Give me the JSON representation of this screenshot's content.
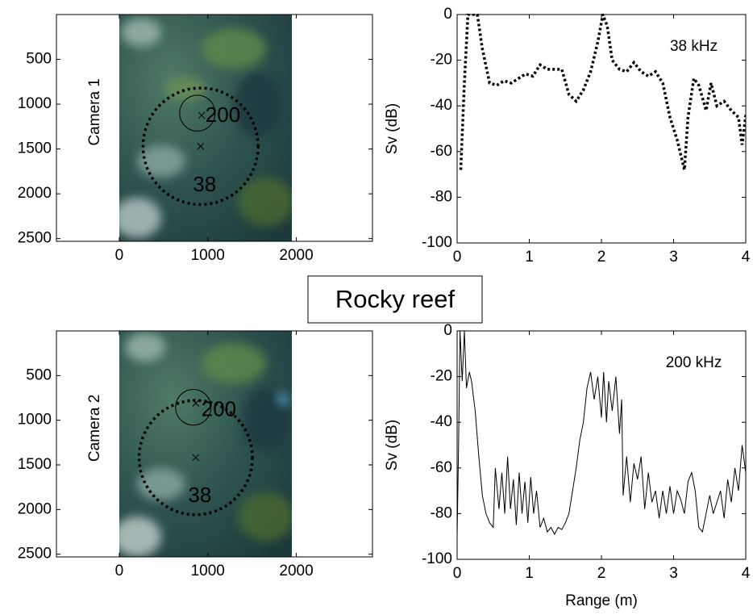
{
  "figure_label": "Rocky reef",
  "chart_data": [
    {
      "type": "image",
      "label": "Camera 1",
      "xlim": [
        -710,
        2860
      ],
      "ylim": [
        0,
        2530
      ],
      "y_inverted": true,
      "xticks": [
        0,
        1000,
        2000
      ],
      "yticks": [
        500,
        1000,
        1500,
        2000,
        2500
      ],
      "circles": [
        {
          "name": "200",
          "x": 882,
          "y": 1100,
          "r": 200,
          "cross_x": 930,
          "cross_y": 1125,
          "style": "solid"
        },
        {
          "name": "38",
          "x": 918,
          "y": 1470,
          "r": 650,
          "cross_x": 918,
          "cross_y": 1470,
          "style": "dotted"
        }
      ]
    },
    {
      "type": "line",
      "ylabel": "Sv (dB)",
      "annotation": "38 kHz",
      "xlim": [
        0,
        4
      ],
      "ylim": [
        -100,
        0
      ],
      "xticks": [
        0,
        1,
        2,
        3,
        4
      ],
      "yticks": [
        -100,
        -80,
        -60,
        -40,
        -20,
        0
      ],
      "color": "#000000",
      "line_style": "dotted",
      "x": [
        0.05,
        0.1,
        0.15,
        0.2,
        0.28,
        0.35,
        0.45,
        0.55,
        0.65,
        0.75,
        0.85,
        0.95,
        1.05,
        1.15,
        1.25,
        1.35,
        1.45,
        1.55,
        1.65,
        1.75,
        1.85,
        1.95,
        2.02,
        2.08,
        2.15,
        2.25,
        2.35,
        2.45,
        2.55,
        2.65,
        2.75,
        2.85,
        2.95,
        3.05,
        3.15,
        3.2,
        3.28,
        3.35,
        3.45,
        3.52,
        3.6,
        3.7,
        3.8,
        3.9,
        3.95,
        4.0
      ],
      "values": [
        -68,
        -30,
        0,
        0,
        0,
        -15,
        -30,
        -31,
        -29,
        -30,
        -28,
        -26,
        -27,
        -22,
        -24,
        -24,
        -24,
        -35,
        -38,
        -33,
        -25,
        -12,
        0,
        -5,
        -20,
        -24,
        -25,
        -21,
        -25,
        -27,
        -25,
        -30,
        -45,
        -55,
        -68,
        -45,
        -28,
        -31,
        -42,
        -30,
        -40,
        -38,
        -42,
        -45,
        -57,
        -44
      ]
    },
    {
      "type": "image",
      "label": "Camera 2",
      "xlim": [
        -710,
        2860
      ],
      "ylim": [
        0,
        2530
      ],
      "y_inverted": true,
      "xticks": [
        0,
        1000,
        2000
      ],
      "yticks": [
        500,
        1000,
        1500,
        2000,
        2500
      ],
      "circles": [
        {
          "name": "200",
          "x": 836,
          "y": 855,
          "r": 200,
          "cross_x": 864,
          "cross_y": 810,
          "style": "solid"
        },
        {
          "name": "38",
          "x": 864,
          "y": 1418,
          "r": 640,
          "cross_x": 864,
          "cross_y": 1418,
          "style": "dotted"
        }
      ]
    },
    {
      "type": "line",
      "ylabel": "Sv (dB)",
      "xlabel": "Range (m)",
      "annotation": "200 kHz",
      "xlim": [
        0,
        4
      ],
      "ylim": [
        -100,
        0
      ],
      "xticks": [
        0,
        1,
        2,
        3,
        4
      ],
      "yticks": [
        -100,
        -80,
        -60,
        -40,
        -20,
        0
      ],
      "color": "#000000",
      "line_style": "solid",
      "x": [
        0,
        0.02,
        0.04,
        0.07,
        0.1,
        0.13,
        0.17,
        0.2,
        0.25,
        0.3,
        0.35,
        0.4,
        0.45,
        0.5,
        0.53,
        0.58,
        0.62,
        0.66,
        0.7,
        0.74,
        0.78,
        0.82,
        0.86,
        0.9,
        0.94,
        0.98,
        1.02,
        1.06,
        1.1,
        1.15,
        1.2,
        1.25,
        1.3,
        1.35,
        1.4,
        1.45,
        1.5,
        1.55,
        1.6,
        1.65,
        1.7,
        1.75,
        1.8,
        1.85,
        1.9,
        1.95,
        2.0,
        2.03,
        2.07,
        2.1,
        2.15,
        2.2,
        2.25,
        2.28,
        2.3,
        2.35,
        2.4,
        2.45,
        2.5,
        2.55,
        2.6,
        2.65,
        2.7,
        2.75,
        2.8,
        2.85,
        2.9,
        2.95,
        3.0,
        3.05,
        3.1,
        3.15,
        3.2,
        3.25,
        3.3,
        3.35,
        3.4,
        3.45,
        3.5,
        3.55,
        3.6,
        3.65,
        3.7,
        3.75,
        3.8,
        3.85,
        3.9,
        3.95,
        4.0
      ],
      "values": [
        -90,
        -50,
        0,
        -22,
        0,
        -25,
        -18,
        -22,
        -35,
        -55,
        -72,
        -80,
        -84,
        -86,
        -60,
        -78,
        -62,
        -80,
        -55,
        -78,
        -65,
        -85,
        -62,
        -80,
        -66,
        -84,
        -64,
        -80,
        -70,
        -86,
        -82,
        -88,
        -86,
        -89,
        -86,
        -87,
        -84,
        -80,
        -70,
        -60,
        -48,
        -40,
        -25,
        -18,
        -30,
        -20,
        -38,
        -18,
        -40,
        -22,
        -35,
        -20,
        -45,
        -30,
        -72,
        -55,
        -75,
        -58,
        -65,
        -55,
        -78,
        -62,
        -75,
        -70,
        -82,
        -70,
        -80,
        -68,
        -80,
        -70,
        -74,
        -80,
        -66,
        -62,
        -70,
        -86,
        -88,
        -80,
        -72,
        -80,
        -75,
        -70,
        -82,
        -65,
        -75,
        -60,
        -70,
        -50,
        -62
      ]
    }
  ]
}
